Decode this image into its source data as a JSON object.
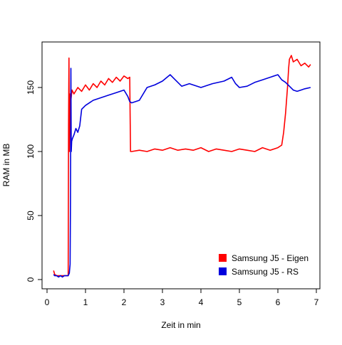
{
  "chart_data": {
    "type": "line",
    "xlabel": "Zeit in min",
    "ylabel": "RAM in MB",
    "xlim": [
      0,
      7
    ],
    "ylim": [
      0,
      180
    ],
    "xticks": [
      0,
      1,
      2,
      3,
      4,
      5,
      6,
      7
    ],
    "yticks": [
      0,
      50,
      100,
      150
    ],
    "grid": false,
    "legend_position": "bottom-right",
    "series": [
      {
        "name": "Samsung J5 - Eigen",
        "color": "#ff0000",
        "x": [
          0.17,
          0.2,
          0.25,
          0.3,
          0.35,
          0.4,
          0.45,
          0.5,
          0.55,
          0.56,
          0.57,
          0.58,
          0.6,
          0.62,
          0.65,
          0.7,
          0.8,
          0.9,
          1.0,
          1.1,
          1.2,
          1.3,
          1.4,
          1.5,
          1.6,
          1.7,
          1.8,
          1.9,
          2.0,
          2.1,
          2.15,
          2.16,
          2.17,
          2.2,
          2.4,
          2.6,
          2.8,
          3.0,
          3.2,
          3.4,
          3.6,
          3.8,
          4.0,
          4.2,
          4.4,
          4.6,
          4.8,
          5.0,
          5.2,
          5.4,
          5.6,
          5.8,
          6.0,
          6.1,
          6.15,
          6.2,
          6.25,
          6.28,
          6.3,
          6.35,
          6.4,
          6.5,
          6.6,
          6.7,
          6.8,
          6.85
        ],
        "y": [
          7,
          4,
          3,
          3,
          3,
          3,
          3,
          3,
          3,
          120,
          173,
          100,
          145,
          140,
          148,
          145,
          150,
          147,
          152,
          148,
          153,
          150,
          155,
          152,
          157,
          154,
          158,
          155,
          159,
          157,
          158,
          130,
          100,
          100,
          101,
          100,
          102,
          101,
          103,
          101,
          102,
          101,
          103,
          100,
          102,
          101,
          100,
          102,
          101,
          100,
          103,
          101,
          103,
          105,
          115,
          130,
          150,
          165,
          172,
          175,
          170,
          172,
          167,
          169,
          166,
          168
        ]
      },
      {
        "name": "Samsung J5 - RS",
        "color": "#0000dd",
        "x": [
          0.17,
          0.2,
          0.25,
          0.3,
          0.35,
          0.4,
          0.45,
          0.5,
          0.55,
          0.58,
          0.6,
          0.61,
          0.62,
          0.63,
          0.64,
          0.66,
          0.7,
          0.75,
          0.8,
          0.85,
          0.9,
          1.0,
          1.2,
          1.4,
          1.6,
          1.8,
          2.0,
          2.1,
          2.15,
          2.2,
          2.4,
          2.6,
          2.8,
          3.0,
          3.2,
          3.3,
          3.5,
          3.7,
          4.0,
          4.3,
          4.6,
          4.8,
          4.9,
          5.0,
          5.2,
          5.4,
          5.6,
          5.8,
          6.0,
          6.1,
          6.2,
          6.3,
          6.4,
          6.5,
          6.6,
          6.7,
          6.85
        ],
        "y": [
          4,
          3,
          3,
          2,
          3,
          2,
          3,
          3,
          3,
          5,
          12,
          60,
          165,
          100,
          108,
          110,
          113,
          118,
          115,
          120,
          133,
          136,
          140,
          142,
          144,
          146,
          148,
          143,
          139,
          138,
          140,
          150,
          152,
          155,
          160,
          157,
          151,
          153,
          150,
          153,
          155,
          158,
          153,
          150,
          151,
          154,
          156,
          158,
          160,
          156,
          154,
          151,
          148,
          147,
          148,
          149,
          150
        ]
      }
    ]
  }
}
